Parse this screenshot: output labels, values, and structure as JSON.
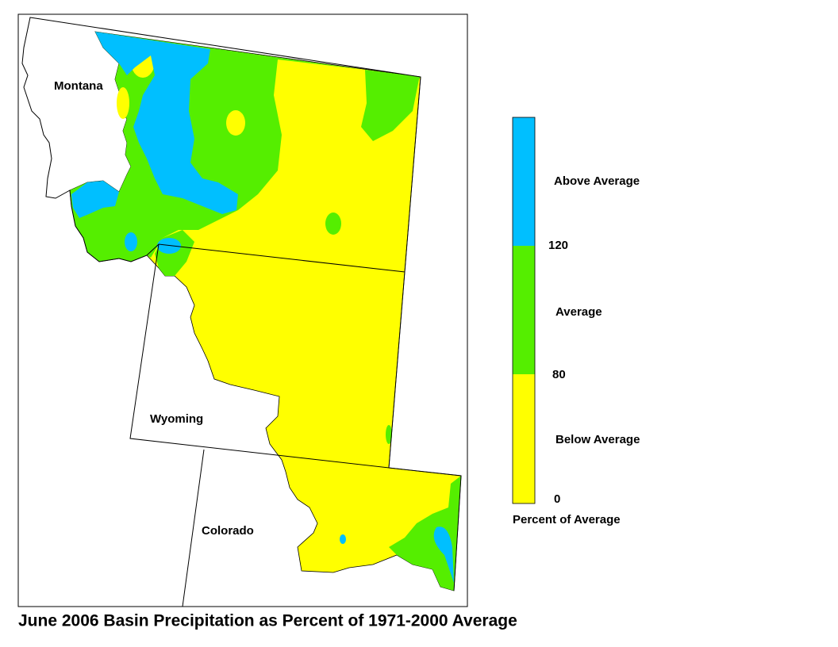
{
  "map": {
    "title": "June 2006 Basin Precipitation as Percent of 1971-2000 Average",
    "regions": [
      {
        "label": "Montana"
      },
      {
        "label": "Wyoming"
      },
      {
        "label": "Colorado"
      }
    ],
    "legend": {
      "title": "Percent of Average",
      "classes": [
        {
          "label": "Above Average",
          "color": "#00bfff"
        },
        {
          "label": "Average",
          "color": "#55ee00"
        },
        {
          "label": "Below Average",
          "color": "#ffff00"
        }
      ],
      "ticks": [
        "120",
        "80",
        "0"
      ]
    }
  }
}
